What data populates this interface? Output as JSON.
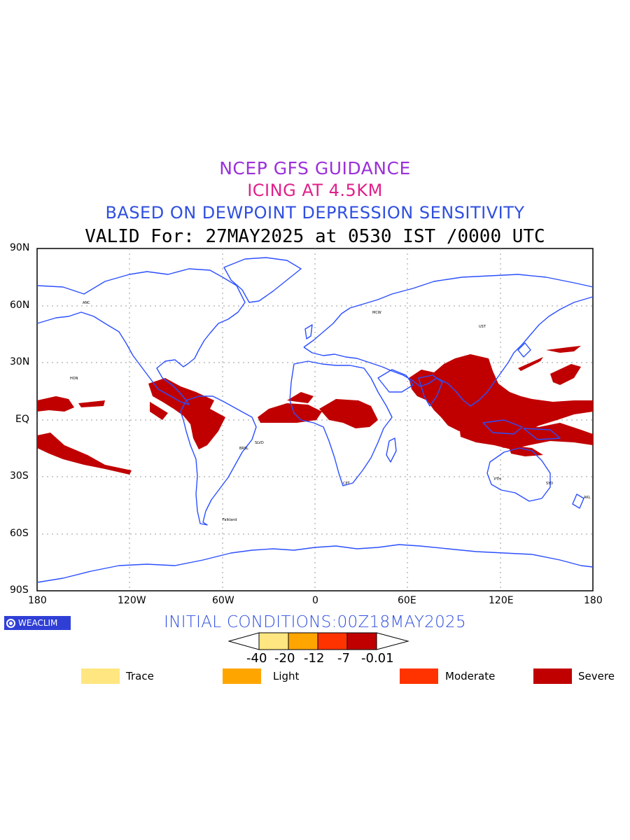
{
  "titles": {
    "line1": "NCEP GFS GUIDANCE",
    "line2": "ICING AT 4.5KM",
    "line3": "BASED ON DEWPOINT DEPRESSION SENSITIVITY",
    "line4": "VALID For: 27MAY2025 at 0530 IST /0000 UTC",
    "colors": {
      "line1": "#9b30d9",
      "line2": "#e0208a",
      "line3": "#2f4fe0",
      "line4": "#000000"
    }
  },
  "axes": {
    "lat_ticks": [
      "90N",
      "60N",
      "30N",
      "EQ",
      "30S",
      "60S",
      "90S"
    ],
    "lon_ticks": [
      "180",
      "120W",
      "60W",
      "0",
      "60E",
      "120E",
      "180"
    ]
  },
  "brand": {
    "label": "WEACLIM",
    "icon": "weaclim-logo-icon"
  },
  "initial_conditions": "INITIAL CONDITIONS:00Z18MAY2025",
  "colorbar": {
    "labels": [
      "-40",
      "-20",
      "-12",
      "-7",
      "-0.01"
    ],
    "colors": [
      "#ffe680",
      "#ffa500",
      "#ff3300",
      "#c00000"
    ]
  },
  "legend": [
    {
      "label": "Trace",
      "color": "#ffe680"
    },
    {
      "label": "Light",
      "color": "#ffa500"
    },
    {
      "label": "Moderate",
      "color": "#ff3300"
    },
    {
      "label": "Severe",
      "color": "#c00000"
    }
  ],
  "map": {
    "coastline_color": "#2b4fff",
    "icing_color": "#c00000",
    "station_labels": [
      "ANC",
      "HON",
      "BRSL",
      "SLVD",
      "Falkland",
      "MCW",
      "UST",
      "CPT",
      "PTH",
      "SYD",
      "AKL"
    ]
  }
}
